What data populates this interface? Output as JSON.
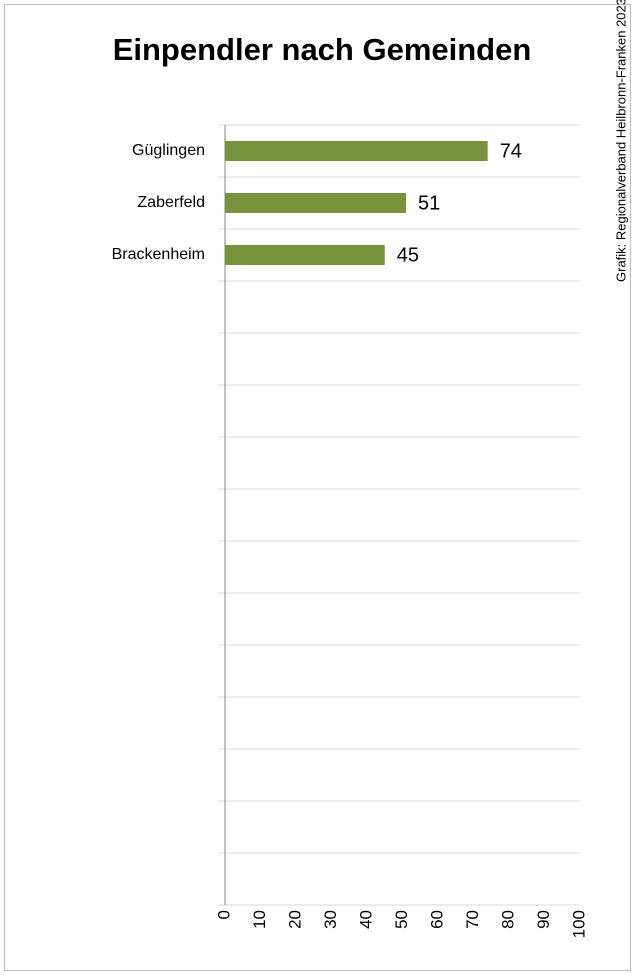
{
  "chart_data": {
    "type": "barh",
    "title": "Einpendler nach Gemeinden",
    "source": "Grafik: Regionalverband Heilbronn-Franken 2023",
    "categories": [
      "Güglingen",
      "Zaberfeld",
      "Brackenheim",
      null,
      null,
      null,
      null,
      null,
      null,
      null,
      null,
      null,
      null,
      null,
      null
    ],
    "values": [
      74,
      51,
      45,
      null,
      null,
      null,
      null,
      null,
      null,
      null,
      null,
      null,
      null,
      null,
      null
    ],
    "color": "#77933c",
    "xlim": [
      0,
      100
    ],
    "xticks": [
      0,
      10,
      20,
      30,
      40,
      50,
      60,
      70,
      80,
      90,
      100
    ]
  }
}
